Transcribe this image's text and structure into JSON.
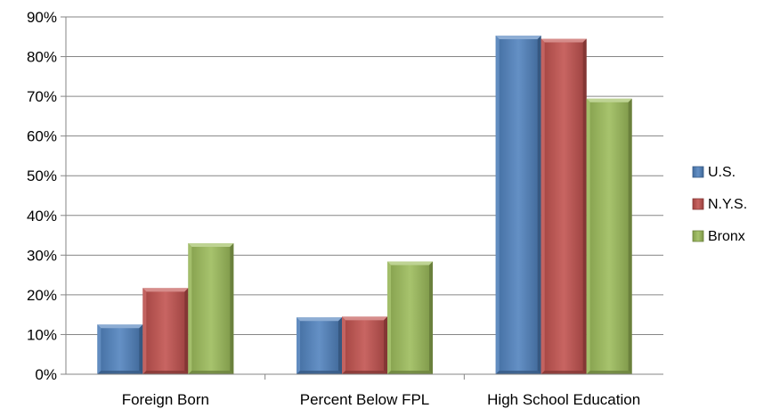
{
  "chart_data": {
    "type": "bar",
    "title": "",
    "xlabel": "",
    "ylabel": "",
    "categories": [
      "Foreign Born",
      "Percent Below FPL",
      "High School Education"
    ],
    "series": [
      {
        "name": "U.S.",
        "values": [
          12.5,
          14.3,
          85.3
        ],
        "color": "#4F81BD"
      },
      {
        "name": "N.Y.S.",
        "values": [
          21.7,
          14.5,
          84.5
        ],
        "color": "#C0504D"
      },
      {
        "name": "Bronx",
        "values": [
          33,
          28.4,
          69.4
        ],
        "color": "#9BBB59"
      }
    ],
    "ylim": [
      0,
      90
    ],
    "y_ticks": [
      0,
      10,
      20,
      30,
      40,
      50,
      60,
      70,
      80,
      90
    ],
    "y_tick_labels": [
      "0%",
      "10%",
      "20%",
      "30%",
      "40%",
      "50%",
      "60%",
      "70%",
      "80%",
      "90%"
    ],
    "grid": true,
    "legend_position": "right",
    "style": "3d-bevel-bars"
  }
}
